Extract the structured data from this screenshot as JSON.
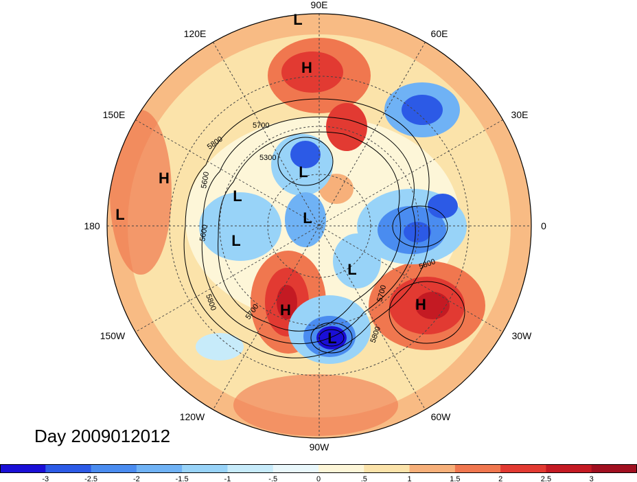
{
  "title": {
    "day_prefix": "Day",
    "date": "2009012012",
    "full": "Day 2009012012"
  },
  "longitude_labels": [
    "90E",
    "60E",
    "30E",
    "0",
    "30W",
    "60W",
    "90W",
    "120W",
    "150W",
    "180",
    "150E",
    "120E"
  ],
  "pressure_centers": [
    {
      "type": "L",
      "label": "L"
    },
    {
      "type": "H",
      "label": "H"
    },
    {
      "type": "L",
      "label": "L"
    },
    {
      "type": "L",
      "label": "L"
    },
    {
      "type": "H",
      "label": "H"
    },
    {
      "type": "L",
      "label": "L"
    },
    {
      "type": "L",
      "label": "L"
    },
    {
      "type": "L",
      "label": "L"
    },
    {
      "type": "L",
      "label": "L"
    },
    {
      "type": "L",
      "label": "L"
    },
    {
      "type": "H",
      "label": "H"
    },
    {
      "type": "H",
      "label": "H"
    }
  ],
  "contour_labels": [
    "5700",
    "5800",
    "5300",
    "5600",
    "5600",
    "5800",
    "5700",
    "5700",
    "5800",
    "5800"
  ],
  "colorbar": {
    "tick_labels": [
      "-3",
      "-2.5",
      "-2",
      "-1.5",
      "-1",
      "-.5",
      "0",
      ".5",
      "1",
      "1.5",
      "2",
      "2.5",
      "3"
    ],
    "colors": [
      "#1a0fd6",
      "#2c5ae6",
      "#4a8cf0",
      "#6fb2f5",
      "#98d3f8",
      "#c7ebfa",
      "#e9f7fb",
      "#fdf6d8",
      "#fbe3aa",
      "#f7b07a",
      "#f0774f",
      "#e23a32",
      "#c41a23",
      "#a00f1f"
    ]
  },
  "colors": {
    "background": "#fdf0c7",
    "graticule": "#444444",
    "contour": "#000000"
  }
}
